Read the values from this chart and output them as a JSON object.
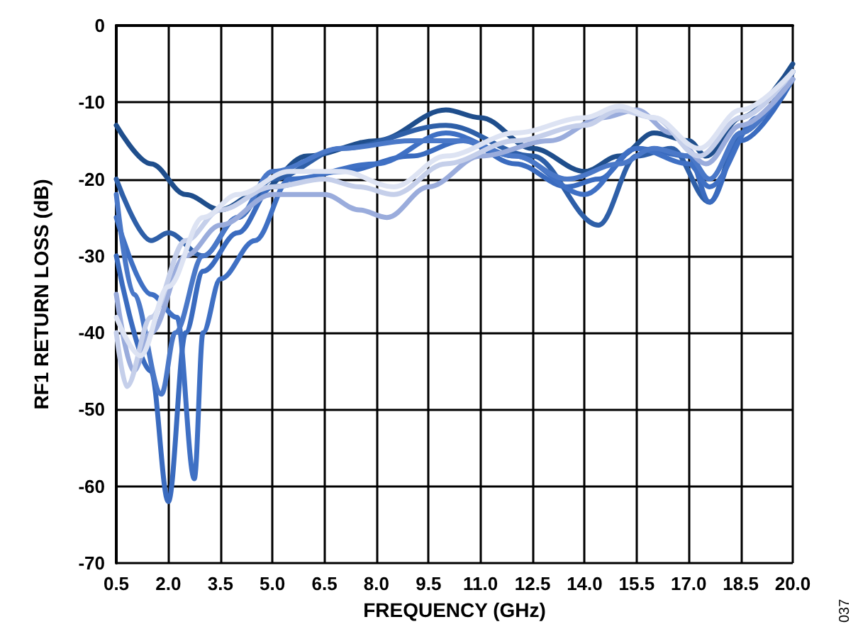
{
  "chart_data": {
    "type": "line",
    "xlabel": "FREQUENCY (GHz)",
    "ylabel": "RF1 RETURN LOSS (dB)",
    "annotations": [
      "037"
    ],
    "xlim": [
      0.5,
      20
    ],
    "xticks": [
      0.5,
      {
        "value": 2,
        "label": "2.0"
      },
      3.5,
      {
        "value": 5,
        "label": "5.0"
      },
      6.5,
      {
        "value": 8,
        "label": "8.0"
      },
      9.5,
      {
        "value": 11,
        "label": "11.0"
      },
      12.5,
      {
        "value": 14,
        "label": "14.0"
      },
      15.5,
      {
        "value": 17,
        "label": "17.0"
      },
      18.5,
      {
        "value": 20,
        "label": "20.0"
      }
    ],
    "ylim": [
      -70,
      0
    ],
    "yticks": [
      -70,
      -60,
      -50,
      -40,
      -30,
      -20,
      -10,
      0
    ],
    "grid": true,
    "marker": "none",
    "line_style": "solid",
    "series": [
      {
        "color": "#1f4e8c",
        "x": [
          0.5,
          1.5,
          2.5,
          3.5,
          4.5,
          6,
          8,
          10,
          11,
          12.5,
          14,
          15,
          16,
          17,
          17.5,
          18.5,
          20
        ],
        "values": [
          -13,
          -18,
          -22,
          -24,
          -22,
          -17,
          -15,
          -11,
          -12,
          -16,
          -19,
          -17,
          -14,
          -15,
          -17,
          -12,
          -5
        ]
      },
      {
        "color": "#2e5fa8",
        "x": [
          0.5,
          1.5,
          2,
          3,
          4,
          5,
          7,
          10,
          12.5,
          14.4,
          15.5,
          16.5,
          17.6,
          18.5,
          20
        ],
        "values": [
          -20,
          -28,
          -27,
          -30,
          -25,
          -20,
          -16,
          -13,
          -17,
          -26,
          -17,
          -16,
          -23,
          -14,
          -6
        ]
      },
      {
        "color": "#3a6bbf",
        "x": [
          0.5,
          1.5,
          2,
          2.5,
          3,
          4,
          5,
          7,
          9,
          10.5,
          12,
          13.5,
          14.4,
          15.5,
          17,
          17.6,
          18.5,
          20
        ],
        "values": [
          -30,
          -45,
          -62,
          -40,
          -32,
          -27,
          -21,
          -19,
          -17,
          -15,
          -18,
          -21,
          -20,
          -16,
          -17,
          -23,
          -15,
          -7
        ]
      },
      {
        "color": "#3f70c4",
        "x": [
          0.5,
          1.5,
          2.25,
          2.75,
          3,
          3.5,
          4.5,
          5.5,
          8,
          10,
          12,
          14,
          15.5,
          17,
          17.6,
          19,
          20
        ],
        "values": [
          -25,
          -35,
          -38,
          -59,
          -40,
          -33,
          -28,
          -20,
          -18,
          -14,
          -17,
          -22,
          -16,
          -18,
          -21,
          -12,
          -6
        ]
      },
      {
        "color": "#4a78c8",
        "x": [
          0.5,
          1,
          1.8,
          2.2,
          3,
          4,
          5,
          7,
          9,
          10.5,
          12,
          13.5,
          15,
          16,
          17,
          17.6,
          18.5,
          20
        ],
        "values": [
          -22,
          -35,
          -48,
          -40,
          -30,
          -25,
          -19,
          -16,
          -15,
          -15,
          -17,
          -20,
          -18,
          -16,
          -17,
          -20,
          -14,
          -6
        ]
      },
      {
        "color": "#9aacdc",
        "x": [
          0.5,
          1,
          1.5,
          2.5,
          3.5,
          5,
          6.5,
          7.5,
          8.3,
          9.5,
          11,
          13,
          14.5,
          15.5,
          16.5,
          17.5,
          18.5,
          20
        ],
        "values": [
          -35,
          -45,
          -40,
          -30,
          -26,
          -22,
          -22,
          -24,
          -25,
          -21,
          -17,
          -15,
          -12,
          -11,
          -14,
          -18,
          -13,
          -7
        ]
      },
      {
        "color": "#c5cfea",
        "x": [
          0.5,
          0.8,
          1.5,
          2.5,
          3.5,
          5,
          6.5,
          7.5,
          8.5,
          10,
          12,
          14,
          15,
          16,
          17.3,
          18.5,
          20
        ],
        "values": [
          -40,
          -47,
          -38,
          -28,
          -24,
          -21,
          -20,
          -21,
          -22,
          -18,
          -15,
          -13,
          -11,
          -12,
          -17,
          -12,
          -6
        ]
      },
      {
        "color": "#dde3f3",
        "x": [
          0.5,
          1.2,
          2,
          3,
          4,
          5.5,
          7,
          8.5,
          10,
          12,
          14,
          15,
          16,
          17.3,
          18.5,
          20
        ],
        "values": [
          -38,
          -43,
          -34,
          -25,
          -22,
          -19,
          -19,
          -21,
          -17,
          -14,
          -12,
          -10.5,
          -12,
          -16,
          -11,
          -6
        ]
      }
    ]
  }
}
